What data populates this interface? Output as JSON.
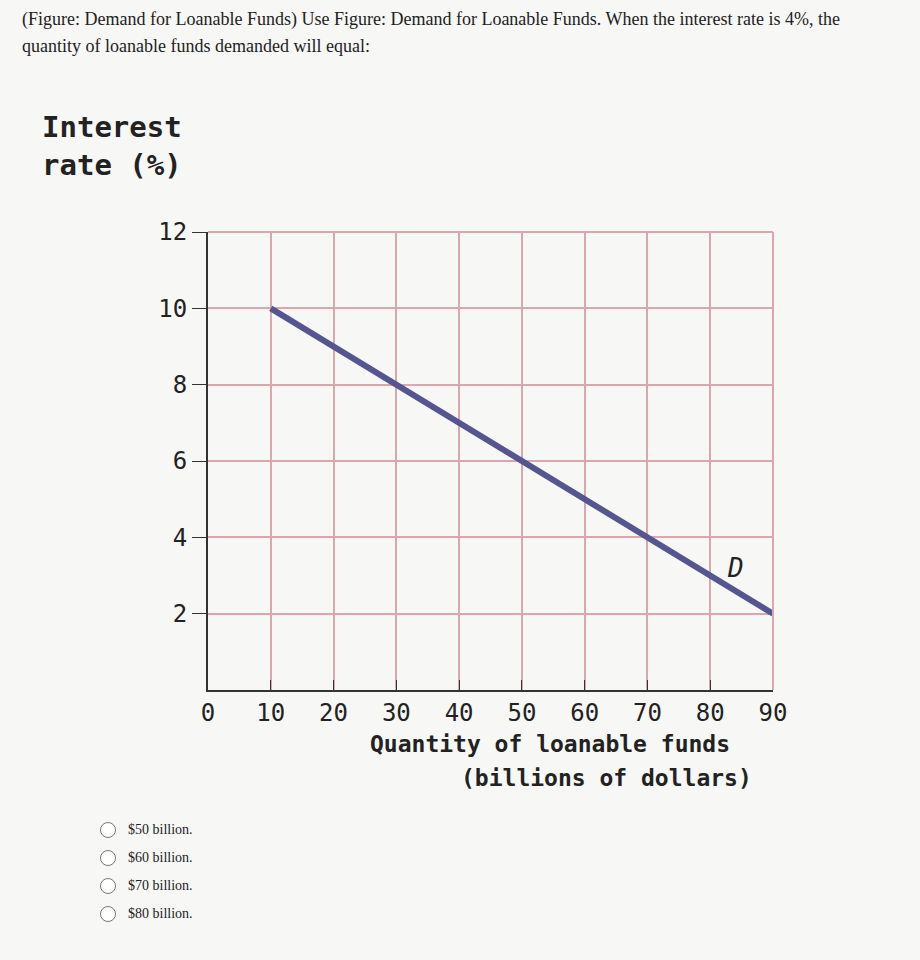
{
  "question": "(Figure: Demand for Loanable Funds) Use Figure: Demand for Loanable Funds. When the interest rate is 4%, the quantity of loanable funds demanded will equal:",
  "options": [
    "$50 billion.",
    "$60 billion.",
    "$70 billion.",
    "$80 billion."
  ],
  "chart_data": {
    "type": "line",
    "ylabel": [
      "Interest",
      "rate (%)"
    ],
    "xlabel": [
      "Quantity of loanable funds",
      "(billions of dollars)"
    ],
    "series": [
      {
        "name": "D",
        "color": "#55558f",
        "x": [
          10,
          90
        ],
        "values": [
          10,
          2
        ]
      }
    ],
    "annotations": [
      {
        "text": "D",
        "x": 84,
        "y": 3.2
      }
    ],
    "xlim": [
      0,
      90
    ],
    "xticks": [
      0,
      10,
      20,
      30,
      40,
      50,
      60,
      70,
      80,
      90
    ],
    "ylim": [
      0,
      12
    ],
    "yticks": [
      2,
      4,
      6,
      8,
      10,
      12
    ],
    "grid": true
  }
}
